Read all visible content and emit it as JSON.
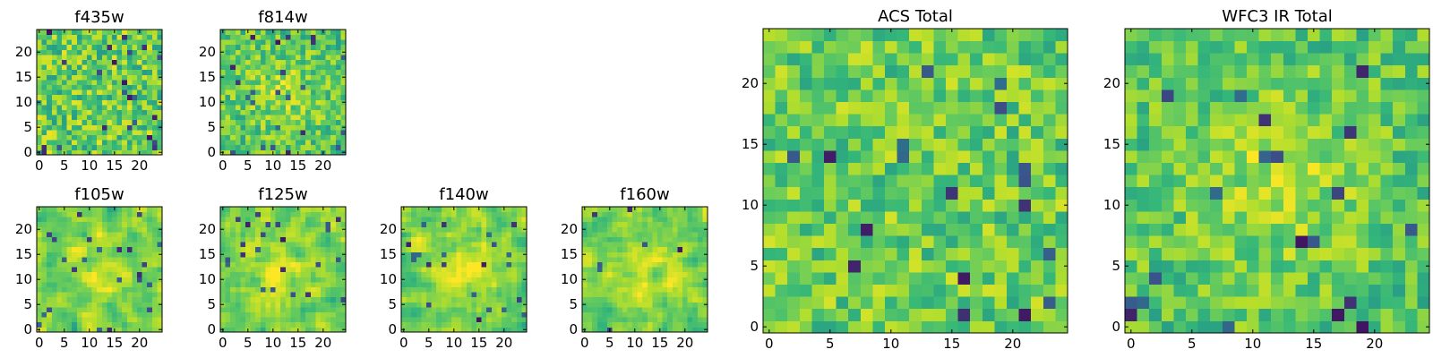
{
  "figure": {
    "colormap": "viridis",
    "panels": [
      "f435w",
      "f814w",
      "f105w",
      "f125w",
      "f140w",
      "f160w",
      "ACS Total",
      "WFC3 IR Total"
    ]
  },
  "chart_data": [
    {
      "type": "heatmap",
      "title": "f435w",
      "grid": [
        25,
        25
      ],
      "xlim": [
        0,
        25
      ],
      "ylim": [
        0,
        25
      ],
      "xticks": [
        0,
        5,
        10,
        15,
        20
      ],
      "yticks": [
        0,
        5,
        10,
        15,
        20
      ],
      "pattern": "noise",
      "seed": 11
    },
    {
      "type": "heatmap",
      "title": "f814w",
      "grid": [
        25,
        25
      ],
      "xlim": [
        0,
        25
      ],
      "ylim": [
        0,
        25
      ],
      "xticks": [
        0,
        5,
        10,
        15,
        20
      ],
      "yticks": [
        0,
        5,
        10,
        15,
        20
      ],
      "pattern": "faint-center",
      "seed": 23
    },
    {
      "type": "heatmap",
      "title": "f105w",
      "grid": [
        25,
        25
      ],
      "xlim": [
        0,
        25
      ],
      "ylim": [
        0,
        25
      ],
      "xticks": [
        0,
        5,
        10,
        15,
        20
      ],
      "yticks": [
        0,
        5,
        10,
        15,
        20
      ],
      "pattern": "smooth-center",
      "seed": 37
    },
    {
      "type": "heatmap",
      "title": "f125w",
      "grid": [
        25,
        25
      ],
      "xlim": [
        0,
        25
      ],
      "ylim": [
        0,
        25
      ],
      "xticks": [
        0,
        5,
        10,
        15,
        20
      ],
      "yticks": [
        0,
        5,
        10,
        15,
        20
      ],
      "pattern": "smooth-center",
      "seed": 41
    },
    {
      "type": "heatmap",
      "title": "f140w",
      "grid": [
        25,
        25
      ],
      "xlim": [
        0,
        25
      ],
      "ylim": [
        0,
        25
      ],
      "xticks": [
        0,
        5,
        10,
        15,
        20
      ],
      "yticks": [
        0,
        5,
        10,
        15,
        20
      ],
      "pattern": "smooth-center",
      "seed": 53
    },
    {
      "type": "heatmap",
      "title": "f160w",
      "grid": [
        25,
        25
      ],
      "xlim": [
        0,
        25
      ],
      "ylim": [
        0,
        25
      ],
      "xticks": [
        0,
        5,
        10,
        15,
        20
      ],
      "yticks": [
        0,
        5,
        10,
        15,
        20
      ],
      "pattern": "smooth-center",
      "seed": 67
    },
    {
      "type": "heatmap",
      "title": "ACS Total",
      "grid": [
        25,
        25
      ],
      "xlim": [
        0,
        25
      ],
      "ylim": [
        0,
        25
      ],
      "xticks": [
        0,
        5,
        10,
        15,
        20
      ],
      "yticks": [
        0,
        5,
        10,
        15,
        20
      ],
      "pattern": "total",
      "seed": 79
    },
    {
      "type": "heatmap",
      "title": "WFC3 IR Total",
      "grid": [
        25,
        25
      ],
      "xlim": [
        0,
        25
      ],
      "ylim": [
        0,
        25
      ],
      "xticks": [
        0,
        5,
        10,
        15,
        20
      ],
      "yticks": [
        0,
        5,
        10,
        15,
        20
      ],
      "pattern": "total-center",
      "seed": 97
    }
  ]
}
